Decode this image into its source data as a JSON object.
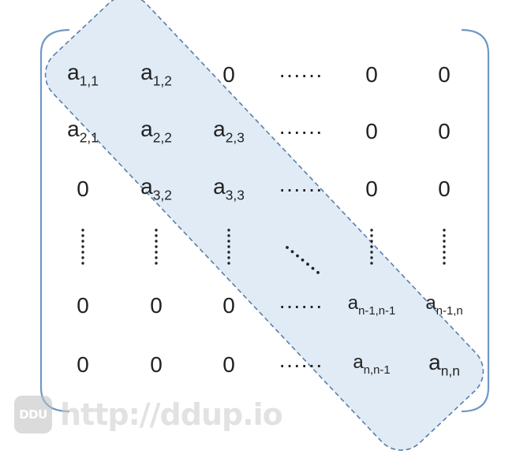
{
  "matrix": {
    "rows": [
      [
        {
          "base": "a",
          "sub": "1,1"
        },
        {
          "base": "a",
          "sub": "1,2"
        },
        {
          "base": "0",
          "sub": ""
        },
        {
          "base": "······",
          "sub": ""
        },
        {
          "base": "0",
          "sub": ""
        },
        {
          "base": "0",
          "sub": ""
        }
      ],
      [
        {
          "base": "a",
          "sub": "2,1"
        },
        {
          "base": "a",
          "sub": "2,2"
        },
        {
          "base": "a",
          "sub": "2,3"
        },
        {
          "base": "······",
          "sub": ""
        },
        {
          "base": "0",
          "sub": ""
        },
        {
          "base": "0",
          "sub": ""
        }
      ],
      [
        {
          "base": "0",
          "sub": ""
        },
        {
          "base": "a",
          "sub": "3,2"
        },
        {
          "base": "a",
          "sub": "3,3"
        },
        {
          "base": "······",
          "sub": ""
        },
        {
          "base": "0",
          "sub": ""
        },
        {
          "base": "0",
          "sub": ""
        }
      ],
      [
        {
          "base": "",
          "sub": ""
        },
        {
          "base": "",
          "sub": ""
        },
        {
          "base": "",
          "sub": ""
        },
        {
          "base": "",
          "sub": ""
        },
        {
          "base": "",
          "sub": ""
        },
        {
          "base": "",
          "sub": ""
        }
      ],
      [
        {
          "base": "0",
          "sub": ""
        },
        {
          "base": "0",
          "sub": ""
        },
        {
          "base": "0",
          "sub": ""
        },
        {
          "base": "······",
          "sub": ""
        },
        {
          "base": "a",
          "sub": "n-1,n-1"
        },
        {
          "base": "a",
          "sub": "n-1,n"
        }
      ],
      [
        {
          "base": "0",
          "sub": ""
        },
        {
          "base": "0",
          "sub": ""
        },
        {
          "base": "0",
          "sub": ""
        },
        {
          "base": "······",
          "sub": ""
        },
        {
          "base": "a",
          "sub": "n,n-1"
        },
        {
          "base": "a",
          "sub": "n,n"
        }
      ]
    ]
  },
  "band_color": "#dbe8f5",
  "band_stroke": "#5a7fa6",
  "bracket_color": "#6f99c4",
  "watermark": {
    "logo": "DDU",
    "url": "http://ddup.io"
  }
}
